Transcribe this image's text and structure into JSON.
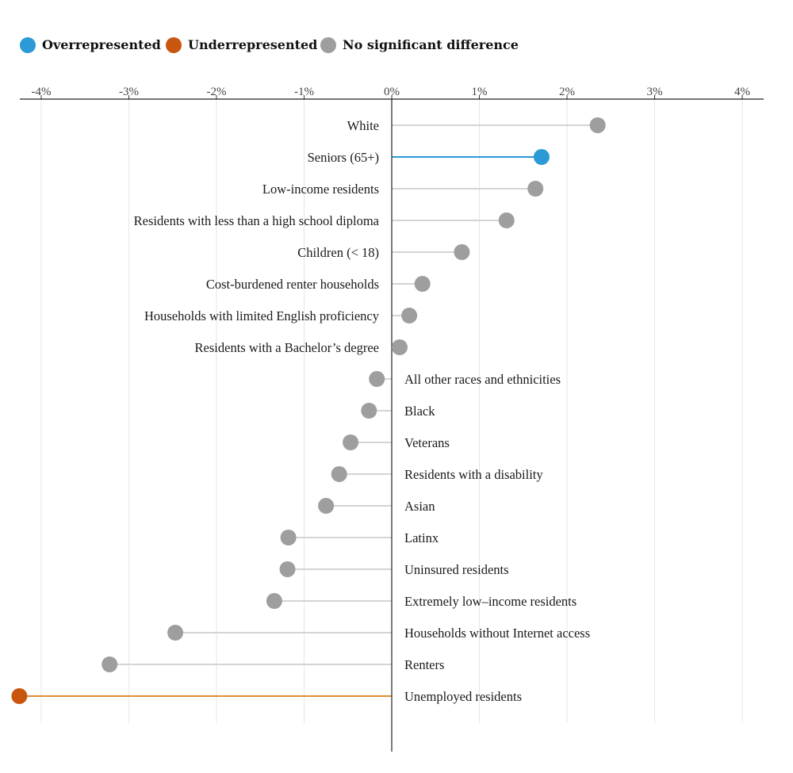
{
  "legend": [
    {
      "label": "Overrepresented",
      "color": "#2b9ad6"
    },
    {
      "label": "Underrepresented",
      "color": "#c9560f"
    },
    {
      "label": "No significant difference",
      "color": "#9e9e9e"
    }
  ],
  "chart_data": {
    "type": "lollipop",
    "title": "",
    "xlabel": "",
    "ylabel": "",
    "xlim": [
      -4.25,
      4.25
    ],
    "x_ticks": [
      -4,
      -3,
      -2,
      -1,
      0,
      1,
      2,
      3,
      4
    ],
    "x_tick_labels": [
      "-4%",
      "-3%",
      "-2%",
      "-1%",
      "0%",
      "1%",
      "2%",
      "3%",
      "4%"
    ],
    "grid": true,
    "legend_position": "top-left",
    "colors": {
      "Overrepresented": "#2b9ad6",
      "Underrepresented": "#c9560f",
      "No significant difference": "#9e9e9e",
      "stem_neutral": "#d4d4d4",
      "stem_over": "#2b9ad6",
      "stem_under": "#dc8f33"
    },
    "categories": [
      "White",
      "Seniors (65+)",
      "Low-income residents",
      "Residents with less than a high school diploma",
      "Children (< 18)",
      "Cost-burdened renter households",
      "Households with limited English proficiency",
      "Residents with a Bachelor’s degree",
      "All other races and ethnicities",
      "Black",
      "Veterans",
      "Residents with a disability",
      "Asian",
      "Latinx",
      "Uninsured residents",
      "Extremely low–income residents",
      "Households without Internet access",
      "Renters",
      "Unemployed residents"
    ],
    "values": [
      2.35,
      1.71,
      1.64,
      1.31,
      0.8,
      0.35,
      0.2,
      0.09,
      -0.17,
      -0.26,
      -0.47,
      -0.6,
      -0.75,
      -1.18,
      -1.19,
      -1.34,
      -2.47,
      -3.22,
      -4.25
    ],
    "status": [
      "No significant difference",
      "Overrepresented",
      "No significant difference",
      "No significant difference",
      "No significant difference",
      "No significant difference",
      "No significant difference",
      "No significant difference",
      "No significant difference",
      "No significant difference",
      "No significant difference",
      "No significant difference",
      "No significant difference",
      "No significant difference",
      "No significant difference",
      "No significant difference",
      "No significant difference",
      "No significant difference",
      "Underrepresented"
    ]
  }
}
